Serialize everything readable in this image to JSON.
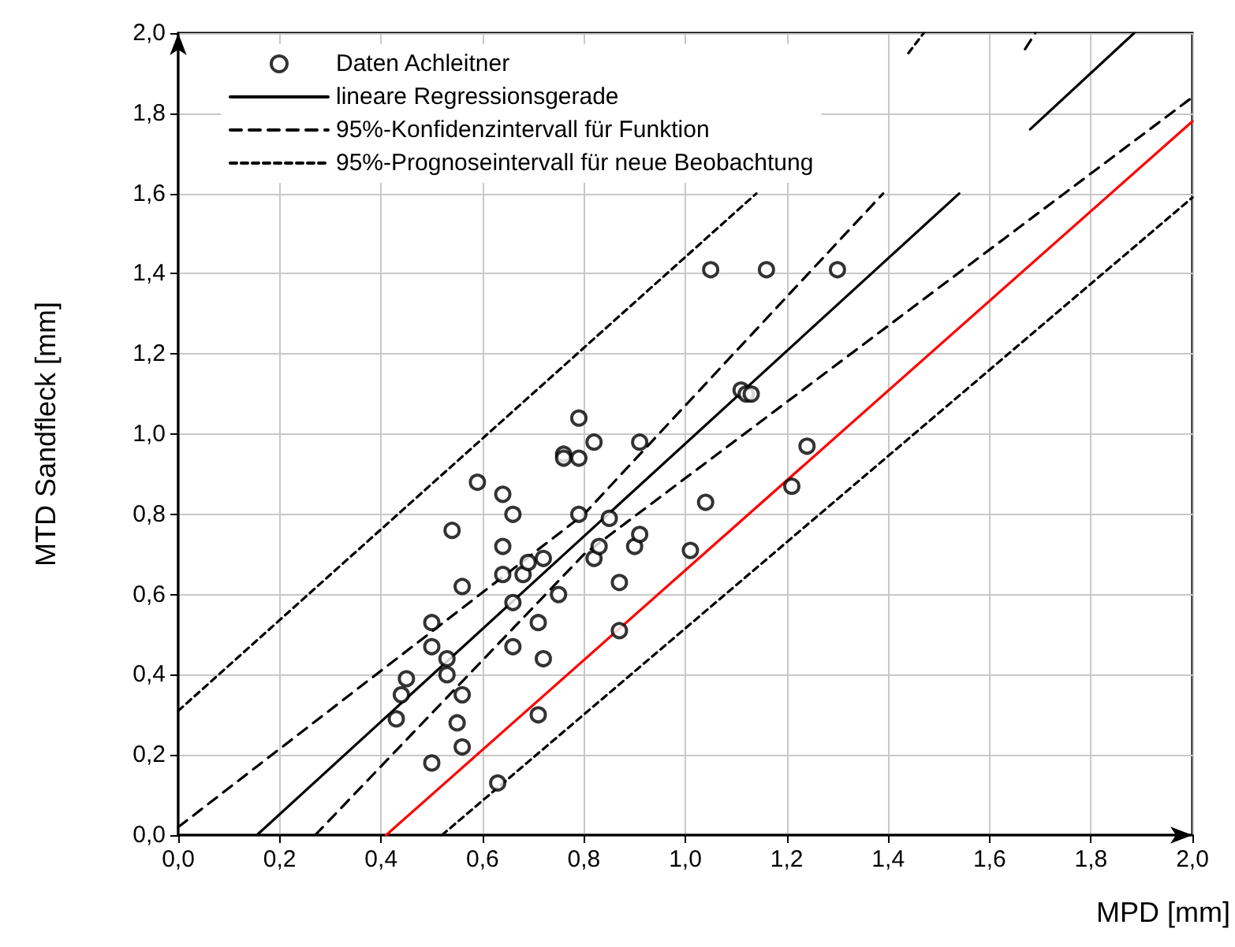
{
  "chart_data": {
    "type": "scatter",
    "xlabel": "MPD [mm]",
    "ylabel": "MTD Sandfleck [mm]",
    "xlim": [
      0,
      2
    ],
    "ylim": [
      0,
      2
    ],
    "xticks": [
      {
        "value": 0,
        "label": "0,0"
      },
      {
        "value": 0.2,
        "label": "0,2"
      },
      {
        "value": 0.4,
        "label": "0,4"
      },
      {
        "value": 0.6,
        "label": "0,6"
      },
      {
        "value": 0.8,
        "label": "0,8"
      },
      {
        "value": 1.0,
        "label": "1,0"
      },
      {
        "value": 1.2,
        "label": "1,2"
      },
      {
        "value": 1.4,
        "label": "1,4"
      },
      {
        "value": 1.6,
        "label": "1,6"
      },
      {
        "value": 1.8,
        "label": "1,8"
      },
      {
        "value": 2.0,
        "label": "2,0"
      }
    ],
    "yticks": [
      {
        "value": 0,
        "label": "0,0"
      },
      {
        "value": 0.2,
        "label": "0,2"
      },
      {
        "value": 0.4,
        "label": "0,4"
      },
      {
        "value": 0.6,
        "label": "0,6"
      },
      {
        "value": 0.8,
        "label": "0,8"
      },
      {
        "value": 1.0,
        "label": "1,0"
      },
      {
        "value": 1.2,
        "label": "1,2"
      },
      {
        "value": 1.4,
        "label": "1,4"
      },
      {
        "value": 1.6,
        "label": "1,6"
      },
      {
        "value": 1.8,
        "label": "1,8"
      },
      {
        "value": 2.0,
        "label": "2,0"
      }
    ],
    "grid": true,
    "legend": "top left",
    "series": [
      {
        "name": "Daten Achleitner",
        "marker": "circle",
        "color": "#000000",
        "x": [
          0.43,
          0.44,
          0.45,
          0.5,
          0.5,
          0.5,
          0.53,
          0.53,
          0.54,
          0.55,
          0.56,
          0.56,
          0.56,
          0.59,
          0.63,
          0.64,
          0.64,
          0.64,
          0.66,
          0.66,
          0.66,
          0.68,
          0.69,
          0.71,
          0.71,
          0.72,
          0.72,
          0.75,
          0.76,
          0.76,
          0.79,
          0.79,
          0.79,
          0.82,
          0.82,
          0.83,
          0.85,
          0.87,
          0.87,
          0.9,
          0.91,
          0.91,
          1.01,
          1.04,
          1.05,
          1.11,
          1.12,
          1.13,
          1.16,
          1.21,
          1.24,
          1.3
        ],
        "values": [
          0.29,
          0.35,
          0.39,
          0.18,
          0.47,
          0.53,
          0.44,
          0.4,
          0.76,
          0.28,
          0.35,
          0.22,
          0.62,
          0.88,
          0.13,
          0.85,
          0.72,
          0.65,
          0.8,
          0.58,
          0.47,
          0.65,
          0.68,
          0.53,
          0.3,
          0.69,
          0.44,
          0.6,
          0.95,
          0.94,
          1.04,
          0.94,
          0.8,
          0.98,
          0.69,
          0.72,
          0.79,
          0.63,
          0.51,
          0.72,
          0.98,
          0.75,
          0.71,
          0.83,
          1.41,
          1.11,
          1.1,
          1.1,
          1.41,
          0.87,
          0.97,
          1.41
        ]
      },
      {
        "name": "lineare Regressionsgerade",
        "type": "line",
        "line_style": "solid",
        "marker": "none",
        "color": "#000000",
        "x": [
          0.155,
          1.54,
          1.61,
          1.68,
          1.885
        ],
        "values": [
          0,
          1.6,
          null,
          1.76,
          2.0
        ]
      },
      {
        "name": "95%-Konfidenzintervall für Funktion",
        "type": "line",
        "line_style": "dashed",
        "marker": "none",
        "color": "#000000",
        "x": [
          0,
          0.8,
          1.39,
          1.5,
          1.67,
          1.69
        ],
        "values": [
          0.02,
          0.8,
          1.6,
          null,
          1.96,
          2.0
        ]
      },
      {
        "type": "line",
        "line_style": "dashed",
        "marker": "none",
        "color": "#000000",
        "x": [
          0.27,
          0.8,
          2.0
        ],
        "values": [
          0,
          0.7,
          1.84
        ]
      },
      {
        "name": "95%-Prognoseintervall für neue Beobachtung",
        "type": "line",
        "line_style": "dotted",
        "marker": "none",
        "color": "#000000",
        "x": [
          0,
          1.14,
          1.3,
          1.44,
          1.47
        ],
        "values": [
          0.31,
          1.6,
          null,
          1.95,
          2.0
        ]
      },
      {
        "type": "line",
        "line_style": "dotted",
        "marker": "none",
        "color": "#000000",
        "x": [
          0.52,
          2.0
        ],
        "values": [
          0,
          1.59
        ]
      },
      {
        "type": "line",
        "line_style": "solid",
        "marker": "none",
        "color": "#ff0000",
        "x": [
          0.41,
          2.0
        ],
        "values": [
          0,
          1.78
        ]
      }
    ]
  }
}
